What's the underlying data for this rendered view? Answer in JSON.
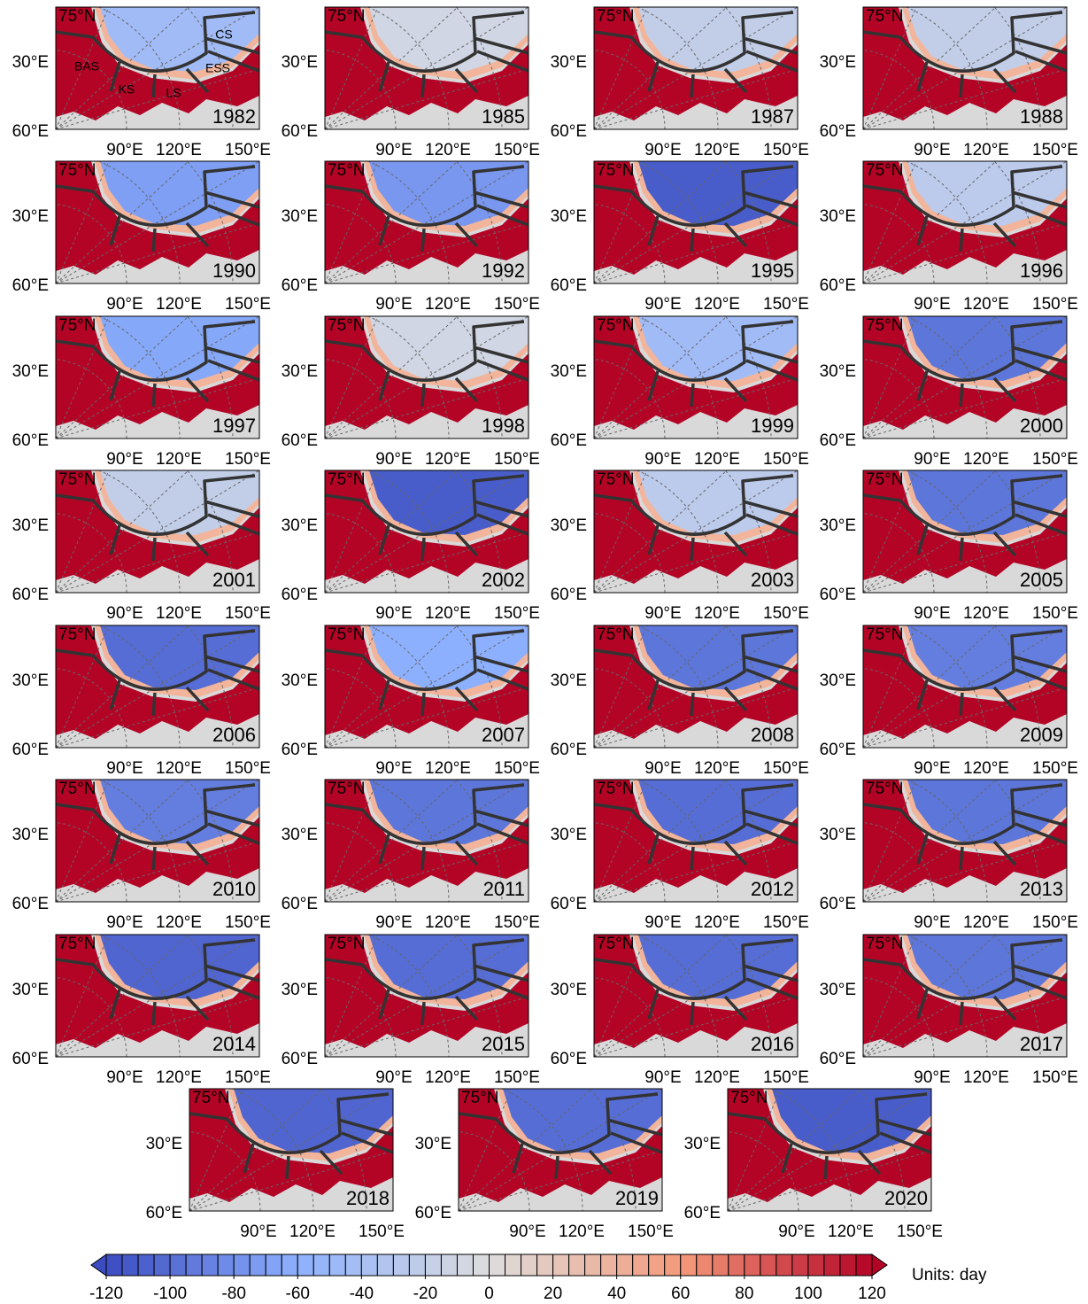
{
  "chart_data": {
    "type": "map-panels",
    "lat_label": "75°N",
    "lon_labels_left": [
      "30°E",
      "60°E"
    ],
    "lon_labels_bottom": [
      "90°E",
      "120°E",
      "150°E"
    ],
    "region_labels": [
      "BAS",
      "KS",
      "LS",
      "ESS",
      "CS"
    ],
    "panels": [
      {
        "year": "1982",
        "value": -45
      },
      {
        "year": "1985",
        "value": -10
      },
      {
        "year": "1987",
        "value": -20
      },
      {
        "year": "1988",
        "value": -20
      },
      {
        "year": "1990",
        "value": -70
      },
      {
        "year": "1992",
        "value": -75
      },
      {
        "year": "1995",
        "value": -110
      },
      {
        "year": "1996",
        "value": -25
      },
      {
        "year": "1997",
        "value": -65
      },
      {
        "year": "1998",
        "value": -10
      },
      {
        "year": "1999",
        "value": -45
      },
      {
        "year": "2000",
        "value": -95
      },
      {
        "year": "2001",
        "value": -20
      },
      {
        "year": "2002",
        "value": -110
      },
      {
        "year": "2003",
        "value": -25
      },
      {
        "year": "2005",
        "value": -95
      },
      {
        "year": "2006",
        "value": -100
      },
      {
        "year": "2007",
        "value": -60
      },
      {
        "year": "2008",
        "value": -95
      },
      {
        "year": "2009",
        "value": -90
      },
      {
        "year": "2010",
        "value": -90
      },
      {
        "year": "2011",
        "value": -95
      },
      {
        "year": "2012",
        "value": -100
      },
      {
        "year": "2013",
        "value": -95
      },
      {
        "year": "2014",
        "value": -105
      },
      {
        "year": "2015",
        "value": -100
      },
      {
        "year": "2016",
        "value": -100
      },
      {
        "year": "2017",
        "value": -95
      },
      {
        "year": "2018",
        "value": -105
      },
      {
        "year": "2019",
        "value": -100
      },
      {
        "year": "2020",
        "value": -110
      }
    ],
    "colorbar": {
      "lim": [
        -120,
        120
      ],
      "ticks": [
        -120,
        -100,
        -80,
        -60,
        -40,
        -20,
        0,
        20,
        40,
        60,
        80,
        100,
        120
      ],
      "levels": 48,
      "colormap": [
        "#3b4cc0",
        "#8db0fe",
        "#dddddd",
        "#f49a7b",
        "#b40426"
      ],
      "units": "Units: day"
    }
  }
}
